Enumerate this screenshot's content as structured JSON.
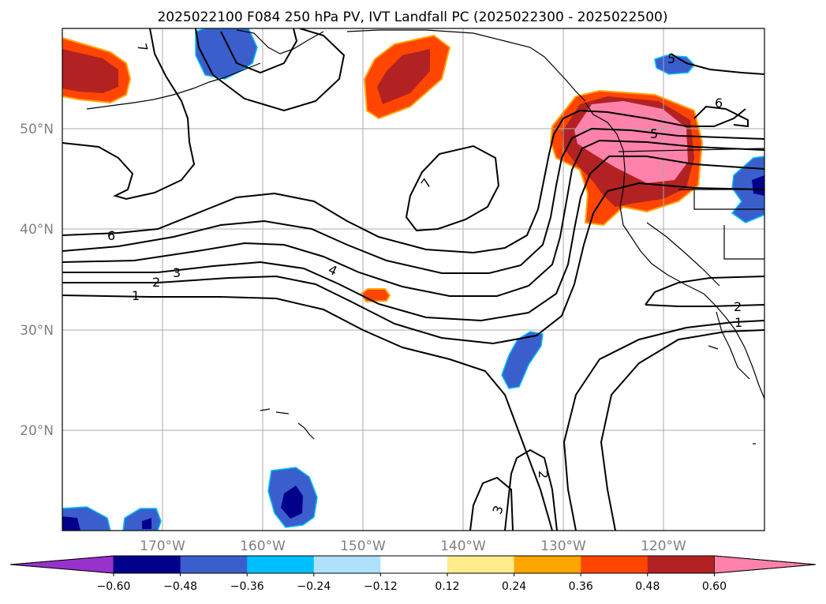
{
  "title": "2025022100 F084 250 hPa PV, IVT Landfall PC (2025022300 - 2025022500)",
  "map": {
    "lon_range": [
      -180,
      -110
    ],
    "lat_range": [
      10,
      60
    ],
    "lat_labels": [
      "20°N",
      "30°N",
      "40°N",
      "50°N"
    ],
    "lon_labels": [
      "170°W",
      "160°W",
      "150°W",
      "140°W",
      "130°W",
      "120°W"
    ]
  },
  "colorbar": {
    "ticks": [
      "−0.60",
      "−0.48",
      "−0.36",
      "−0.24",
      "−0.12",
      "0.12",
      "0.24",
      "0.36",
      "0.48",
      "0.60"
    ],
    "colors": [
      "#9932cc",
      "#00008b",
      "#3a5fcd",
      "#00bfff",
      "#b0e2ff",
      "#ffffff",
      "#ffec8b",
      "#ffa500",
      "#ff4500",
      "#b22222",
      "#ff82ab"
    ]
  },
  "contour_labels": [
    {
      "text": "7"
    },
    {
      "text": "6"
    },
    {
      "text": "1"
    },
    {
      "text": "2"
    },
    {
      "text": "3"
    },
    {
      "text": "4"
    },
    {
      "text": "7"
    },
    {
      "text": "5"
    },
    {
      "text": "6"
    },
    {
      "text": "5"
    },
    {
      "text": "2"
    },
    {
      "text": "1"
    },
    {
      "text": "2"
    },
    {
      "text": "3"
    }
  ]
}
